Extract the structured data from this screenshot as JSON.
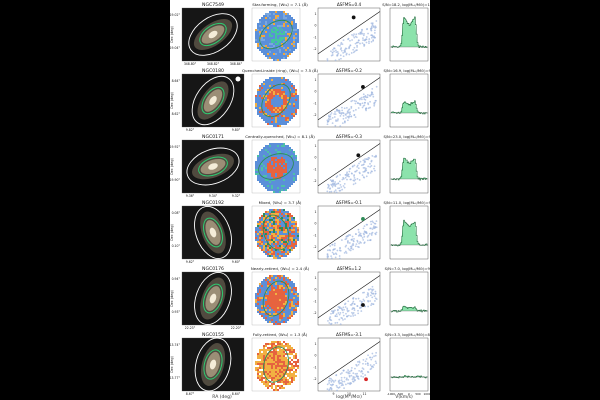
{
  "figure": {
    "global_labels": {
      "ra_axis": "RA (deg)",
      "sfr_axis": "log(M*/M⊙)",
      "vel_axis": "V(km/s)"
    },
    "rows": [
      {
        "galaxy": "NGC7549",
        "map_title": "Star-forming, ⟨Wₕₐ⟩ = 7.1 (Å)",
        "dsfms": "ΔSFMS=0.4",
        "spectrum_title": "S/N=18.2, log(Mₕ₂/M⊙)=10.4",
        "dec_ticks": [
          "19.02°",
          "19.04°"
        ],
        "ra_ticks": [
          "348.80°",
          "348.82°",
          "348.84°"
        ],
        "map_colors": [
          "#5b8fd9",
          "#79a8e0",
          "#44c49f",
          "#f3a73b"
        ],
        "point": {
          "x": 10.3,
          "y": 0.7,
          "color": "#111111"
        },
        "spectrum": {
          "peak": 0.88
        }
      },
      {
        "galaxy": "NGC0180",
        "map_title": "Quenched-inside (ring), ⟨Wₕₐ⟩ = 7.5 (Å)",
        "dsfms": "ΔSFMS=-0.2",
        "spectrum_title": "S/N=16.9, log(Mₕ₂/M⊙)=9.8",
        "dec_ticks": [
          "8.64°",
          "8.62°"
        ],
        "ra_ticks": [
          "9.82°",
          "9.80°"
        ],
        "map_colors": [
          "#5b8fd9",
          "#7cb2e4",
          "#e6633f",
          "#f2b042"
        ],
        "point": {
          "x": 10.9,
          "y": 0.4,
          "color": "#111111"
        },
        "spectrum": {
          "peak": 0.34
        }
      },
      {
        "galaxy": "NGC0171",
        "map_title": "Centrally-quenched, ⟨Wₕₐ⟩ = 8.1 (Å)",
        "dsfms": "ΔSFMS=-0.3",
        "spectrum_title": "S/N=23.0, log(Mₕ₂/M⊙)=9.3",
        "dec_ticks": [
          "19.92°",
          "19.90°"
        ],
        "ra_ticks": [
          "9.36°",
          "9.34°",
          "9.32°"
        ],
        "map_colors": [
          "#5b8fd9",
          "#6aa3df",
          "#e6633f",
          "#4ec1a8"
        ],
        "point": {
          "x": 10.6,
          "y": 0.2,
          "color": "#111111"
        },
        "spectrum": {
          "peak": 0.62
        }
      },
      {
        "galaxy": "NGC0192",
        "map_title": "Mixed, ⟨Wₕₐ⟩ = 3.7 (Å)",
        "dsfms": "ΔSFMS=-0.1",
        "spectrum_title": "S/N=11.0, log(Mₕ₂/M⊙)=9.9",
        "dec_ticks": [
          "0.08°",
          "0.10°"
        ],
        "ra_ticks": [
          "9.62°",
          "9.60°"
        ],
        "map_colors": [
          "#5b8fd9",
          "#e6633f",
          "#f2b042",
          "#2e8b57"
        ],
        "point": {
          "x": 10.9,
          "y": 0.4,
          "color": "#2e8b57"
        },
        "spectrum": {
          "peak": 0.72
        }
      },
      {
        "galaxy": "NGC0176",
        "map_title": "Nearly-retired, ⟨Wₕₐ⟩ = 2.4 (Å)",
        "dsfms": "ΔSFMS=1.2",
        "spectrum_title": "S/N=7.0, log(Mₕ₂/M⊙)=9.2",
        "dec_ticks": [
          "0.94°",
          "0.93°"
        ],
        "ra_ticks": [
          "22.23°",
          "22.20°"
        ],
        "map_colors": [
          "#5b8fd9",
          "#7cb2e4",
          "#e6633f",
          "#f2b042"
        ],
        "point": {
          "x": 10.9,
          "y": -1.3,
          "color": "#111111"
        },
        "spectrum": {
          "peak": 0.12
        }
      },
      {
        "galaxy": "NGC0155",
        "map_title": "Fully-retired, ⟨Wₕₐ⟩ = 1.3 (Å)",
        "dsfms": "ΔSFMS=-3.1",
        "spectrum_title": "S/N=3.3, log(Mₕ₂/M⊙)=8.7",
        "dec_ticks": [
          "-13.74°",
          "-13.77°"
        ],
        "ra_ticks": [
          "8.67°",
          "8.64°"
        ],
        "map_colors": [
          "#f2b042",
          "#e6633f",
          "#5b8fd9",
          "#2e8b57"
        ],
        "point": {
          "x": 11.1,
          "y": -2.0,
          "color": "#d62728"
        },
        "spectrum": {
          "peak": 0.02
        }
      }
    ]
  }
}
